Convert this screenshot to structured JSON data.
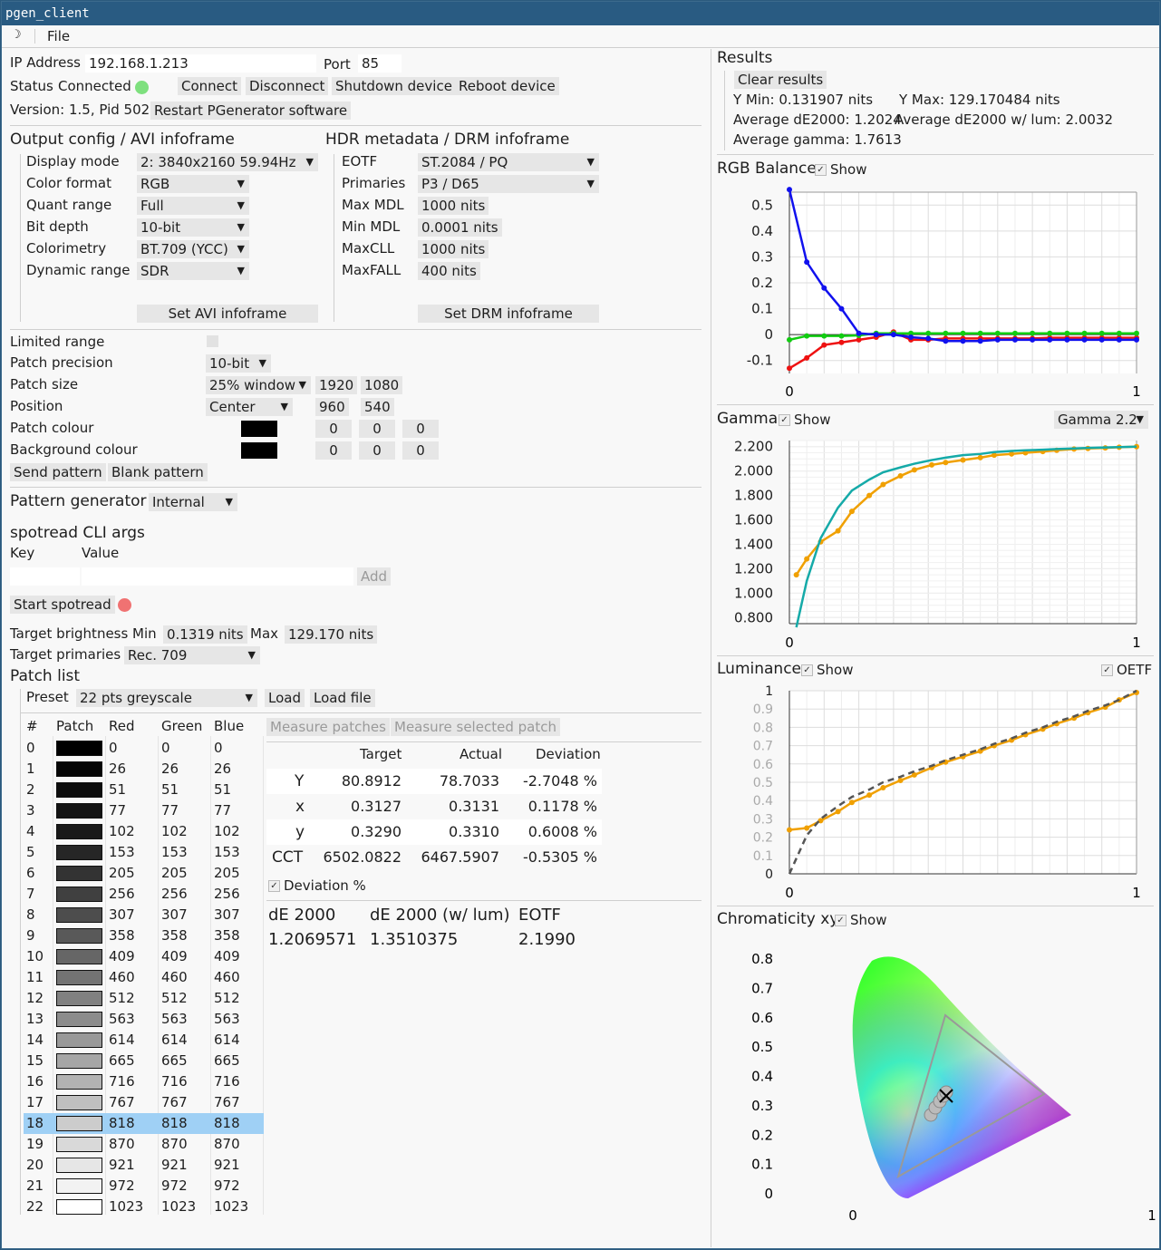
{
  "window": {
    "title": "pgen_client"
  },
  "menu": {
    "file": "File"
  },
  "connection": {
    "ip_label": "IP Address",
    "ip_value": "192.168.1.213",
    "port_label": "Port",
    "port_value": "85",
    "status_label": "Status",
    "status_value": "Connected",
    "status_color": "#7ee07e",
    "connect": "Connect",
    "disconnect": "Disconnect",
    "shutdown": "Shutdown device",
    "reboot": "Reboot device",
    "version": "Version: 1.5, Pid 502",
    "restart": "Restart PGenerator software"
  },
  "avi": {
    "title": "Output config / AVI infoframe",
    "rows": [
      {
        "label": "Display mode",
        "value": "2: 3840x2160 59.94Hz"
      },
      {
        "label": "Color format",
        "value": "RGB"
      },
      {
        "label": "Quant range",
        "value": "Full"
      },
      {
        "label": "Bit depth",
        "value": "10-bit"
      },
      {
        "label": "Colorimetry",
        "value": "BT.709 (YCC)"
      },
      {
        "label": "Dynamic range",
        "value": "SDR"
      }
    ],
    "set_button": "Set AVI infoframe"
  },
  "drm": {
    "title": "HDR metadata / DRM infoframe",
    "rows": [
      {
        "label": "EOTF",
        "value": "ST.2084 / PQ"
      },
      {
        "label": "Primaries",
        "value": "P3 / D65"
      },
      {
        "label": "Max MDL",
        "value": "1000 nits"
      },
      {
        "label": "Min MDL",
        "value": "0.0001 nits"
      },
      {
        "label": "MaxCLL",
        "value": "1000 nits"
      },
      {
        "label": "MaxFALL",
        "value": "400 nits"
      }
    ],
    "set_button": "Set DRM infoframe"
  },
  "pattern": {
    "limited_range": "Limited range",
    "precision_label": "Patch precision",
    "precision_value": "10-bit",
    "size_label": "Patch size",
    "size_value": "25% window",
    "size_w": "1920",
    "size_h": "1080",
    "position_label": "Position",
    "position_value": "Center",
    "pos_x": "960",
    "pos_y": "540",
    "patch_colour_label": "Patch colour",
    "patch_rgb": [
      "0",
      "0",
      "0"
    ],
    "bg_colour_label": "Background colour",
    "bg_rgb": [
      "0",
      "0",
      "0"
    ],
    "send": "Send pattern",
    "blank": "Blank pattern"
  },
  "generator": {
    "label": "Pattern generator",
    "value": "Internal"
  },
  "spotread": {
    "title": "spotread CLI args",
    "key": "Key",
    "value": "Value",
    "add": "Add",
    "start": "Start spotread",
    "status_color": "#f07272"
  },
  "targets": {
    "brightness_label": "Target brightness",
    "min_label": "Min",
    "min_value": "0.1319 nits",
    "max_label": "Max",
    "max_value": "129.170 nits",
    "primaries_label": "Target primaries",
    "primaries_value": "Rec. 709"
  },
  "patch_list": {
    "title": "Patch list",
    "preset_label": "Preset",
    "preset_value": "22 pts greyscale",
    "load": "Load",
    "load_file": "Load file",
    "headers": [
      "#",
      "Patch",
      "Red",
      "Green",
      "Blue"
    ],
    "selected_index": 18,
    "rows": [
      [
        "0",
        "0",
        "0",
        "0"
      ],
      [
        "1",
        "26",
        "26",
        "26"
      ],
      [
        "2",
        "51",
        "51",
        "51"
      ],
      [
        "3",
        "77",
        "77",
        "77"
      ],
      [
        "4",
        "102",
        "102",
        "102"
      ],
      [
        "5",
        "153",
        "153",
        "153"
      ],
      [
        "6",
        "205",
        "205",
        "205"
      ],
      [
        "7",
        "256",
        "256",
        "256"
      ],
      [
        "8",
        "307",
        "307",
        "307"
      ],
      [
        "9",
        "358",
        "358",
        "358"
      ],
      [
        "10",
        "409",
        "409",
        "409"
      ],
      [
        "11",
        "460",
        "460",
        "460"
      ],
      [
        "12",
        "512",
        "512",
        "512"
      ],
      [
        "13",
        "563",
        "563",
        "563"
      ],
      [
        "14",
        "614",
        "614",
        "614"
      ],
      [
        "15",
        "665",
        "665",
        "665"
      ],
      [
        "16",
        "716",
        "716",
        "716"
      ],
      [
        "17",
        "767",
        "767",
        "767"
      ],
      [
        "18",
        "818",
        "818",
        "818"
      ],
      [
        "19",
        "870",
        "870",
        "870"
      ],
      [
        "20",
        "921",
        "921",
        "921"
      ],
      [
        "21",
        "972",
        "972",
        "972"
      ],
      [
        "22",
        "1023",
        "1023",
        "1023"
      ]
    ]
  },
  "measure": {
    "measure_patches": "Measure patches",
    "measure_selected": "Measure selected patch",
    "col_headers": [
      "Target",
      "Actual",
      "Deviation"
    ],
    "rows": [
      {
        "name": "Y",
        "target": "80.8912",
        "actual": "78.7033",
        "dev": "-2.7048 %"
      },
      {
        "name": "x",
        "target": "0.3127",
        "actual": "0.3131",
        "dev": "0.1178 %"
      },
      {
        "name": "y",
        "target": "0.3290",
        "actual": "0.3310",
        "dev": "0.6008 %"
      },
      {
        "name": "CCT",
        "target": "6502.0822",
        "actual": "6467.5907",
        "dev": "-0.5305 %"
      }
    ],
    "deviation_label": "Deviation %",
    "de_headers": [
      "dE 2000",
      "dE 2000 (w/ lum)",
      "EOTF"
    ],
    "de_values": [
      "1.2069571",
      "1.3510375",
      "2.1990"
    ]
  },
  "results": {
    "title": "Results",
    "clear": "Clear results",
    "ymin": "Y Min: 0.131907 nits",
    "ymax": "Y Max: 129.170484 nits",
    "avg_de": "Average dE2000: 1.2024",
    "avg_de_lum": "Average dE2000 w/ lum: 2.0032",
    "avg_gamma": "Average gamma: 1.7613"
  },
  "charts": {
    "show": "Show",
    "rgb_title": "RGB Balance",
    "gamma_title": "Gamma",
    "gamma_combo": "Gamma 2.2",
    "lum_title": "Luminance",
    "oetf": "OETF",
    "chroma_title": "Chromaticity xy"
  },
  "chart_data": [
    {
      "type": "line",
      "title": "RGB Balance",
      "x": [
        0,
        0.05,
        0.1,
        0.15,
        0.2,
        0.25,
        0.3,
        0.35,
        0.4,
        0.45,
        0.5,
        0.55,
        0.6,
        0.65,
        0.7,
        0.75,
        0.8,
        0.85,
        0.9,
        0.95,
        1.0
      ],
      "ylim": [
        -0.15,
        0.55
      ],
      "xlim": [
        0,
        1
      ],
      "yticks": [
        "0.5",
        "0.4",
        "0.3",
        "0.2",
        "0.1",
        "0",
        "-0.1"
      ],
      "xticks": [
        "0",
        "1"
      ],
      "series": [
        {
          "color": "#ee1111",
          "values": [
            -0.13,
            -0.09,
            -0.04,
            -0.03,
            -0.02,
            -0.01,
            0.01,
            -0.02,
            -0.02,
            -0.015,
            -0.015,
            -0.015,
            -0.015,
            -0.015,
            -0.015,
            -0.012,
            -0.012,
            -0.012,
            -0.012,
            -0.012,
            -0.012
          ]
        },
        {
          "color": "#11cc11",
          "values": [
            -0.02,
            -0.005,
            -0.005,
            -0.005,
            -0.003,
            0.005,
            0.005,
            0.005,
            0.005,
            0.005,
            0.005,
            0.005,
            0.005,
            0.005,
            0.005,
            0.005,
            0.005,
            0.005,
            0.005,
            0.005,
            0.005
          ]
        },
        {
          "color": "#1111ee",
          "values": [
            0.56,
            0.28,
            0.18,
            0.1,
            0.005,
            0.0,
            0.0,
            -0.01,
            -0.015,
            -0.025,
            -0.025,
            -0.025,
            -0.02,
            -0.02,
            -0.02,
            -0.02,
            -0.02,
            -0.02,
            -0.02,
            -0.02,
            -0.02
          ]
        }
      ]
    },
    {
      "type": "line",
      "title": "Gamma",
      "x": [
        0.02,
        0.05,
        0.09,
        0.14,
        0.18,
        0.23,
        0.27,
        0.32,
        0.36,
        0.41,
        0.45,
        0.5,
        0.55,
        0.59,
        0.64,
        0.68,
        0.73,
        0.77,
        0.82,
        0.86,
        0.91,
        0.95,
        1.0
      ],
      "ylim": [
        0.75,
        2.25
      ],
      "xlim": [
        0,
        1
      ],
      "yticks": [
        "2.200",
        "2.000",
        "1.800",
        "1.600",
        "1.400",
        "1.200",
        "1.000",
        "0.800"
      ],
      "xticks": [
        "0",
        "1"
      ],
      "series": [
        {
          "color": "#f0a000",
          "values": [
            1.15,
            1.28,
            1.42,
            1.51,
            1.67,
            1.8,
            1.89,
            1.96,
            2.01,
            2.05,
            2.07,
            2.09,
            2.11,
            2.13,
            2.14,
            2.15,
            2.16,
            2.17,
            2.18,
            2.185,
            2.19,
            2.195,
            2.2
          ]
        },
        {
          "name": "Gamma 2.2",
          "color": "#15aaa8",
          "values": [
            0.72,
            1.1,
            1.45,
            1.7,
            1.84,
            1.93,
            1.99,
            2.03,
            2.06,
            2.09,
            2.11,
            2.13,
            2.14,
            2.155,
            2.165,
            2.17,
            2.175,
            2.18,
            2.185,
            2.19,
            2.193,
            2.196,
            2.2
          ]
        }
      ]
    },
    {
      "type": "line",
      "title": "Luminance",
      "x": [
        0,
        0.05,
        0.09,
        0.14,
        0.18,
        0.23,
        0.27,
        0.32,
        0.36,
        0.41,
        0.45,
        0.5,
        0.55,
        0.59,
        0.64,
        0.68,
        0.73,
        0.77,
        0.82,
        0.86,
        0.91,
        0.95,
        1.0
      ],
      "ylim": [
        0,
        1
      ],
      "xlim": [
        0,
        1
      ],
      "yticks": [
        "1",
        "0.9",
        "0.8",
        "0.7",
        "0.6",
        "0.5",
        "0.4",
        "0.3",
        "0.2",
        "0.1",
        "0"
      ],
      "xticks": [
        "0",
        "1"
      ],
      "series": [
        {
          "color": "#f0a000",
          "values": [
            0.24,
            0.25,
            0.29,
            0.34,
            0.39,
            0.43,
            0.47,
            0.51,
            0.54,
            0.58,
            0.61,
            0.64,
            0.67,
            0.7,
            0.73,
            0.76,
            0.79,
            0.82,
            0.85,
            0.88,
            0.91,
            0.95,
            0.99
          ]
        },
        {
          "name": "target",
          "color": "#555555",
          "values": [
            0.0,
            0.21,
            0.3,
            0.37,
            0.42,
            0.46,
            0.5,
            0.53,
            0.56,
            0.59,
            0.62,
            0.65,
            0.68,
            0.71,
            0.74,
            0.77,
            0.8,
            0.83,
            0.86,
            0.89,
            0.92,
            0.95,
            1.0
          ]
        }
      ]
    },
    {
      "type": "scatter",
      "title": "Chromaticity xy",
      "xlim": [
        0,
        1
      ],
      "ylim": [
        0,
        0.85
      ],
      "yticks": [
        "0.8",
        "0.7",
        "0.6",
        "0.5",
        "0.4",
        "0.3",
        "0.2",
        "0.1",
        "0"
      ],
      "xticks": [
        "0",
        "1"
      ],
      "gamut_triangle": [
        [
          0.64,
          0.33
        ],
        [
          0.3,
          0.6
        ],
        [
          0.15,
          0.06
        ]
      ],
      "points": [
        [
          0.3127,
          0.329
        ],
        [
          0.3131,
          0.331
        ],
        [
          0.305,
          0.32
        ],
        [
          0.295,
          0.305
        ],
        [
          0.29,
          0.295
        ]
      ]
    }
  ]
}
